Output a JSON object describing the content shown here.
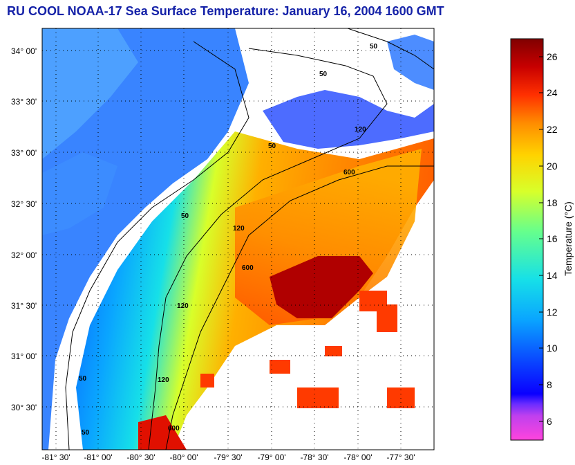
{
  "title": "RU COOL  NOAA-17  Sea Surface Temperature:  January 16, 2004 1600 GMT",
  "map": {
    "lat_labels": [
      "34° 00'",
      "33° 30'",
      "33° 00'",
      "32° 30'",
      "32° 00'",
      "31° 30'",
      "31° 00'",
      "30° 30'"
    ],
    "lon_labels": [
      "-81° 30'",
      "-81° 00'",
      "-80° 30'",
      "-80° 00'",
      "-79° 30'",
      "-79° 00'",
      "-78° 30'",
      "-78° 00'",
      "-77° 30'"
    ],
    "contour_labels": [
      "50",
      "50",
      "50",
      "50",
      "50",
      "50",
      "120",
      "120",
      "120",
      "120",
      "600",
      "600",
      "600"
    ]
  },
  "colorbar": {
    "title": "Temperature (°C)",
    "ticks": [
      "26",
      "24",
      "22",
      "20",
      "18",
      "16",
      "14",
      "12",
      "10",
      "8",
      "6"
    ],
    "colors": [
      "#ff44dd",
      "#b24cf2",
      "#3b1fff",
      "#0a55ff",
      "#0aa5ff",
      "#16e0e8",
      "#66ff8c",
      "#d8ff2a",
      "#ffd300",
      "#ff8c00",
      "#ff3300",
      "#c80000",
      "#800000"
    ]
  }
}
